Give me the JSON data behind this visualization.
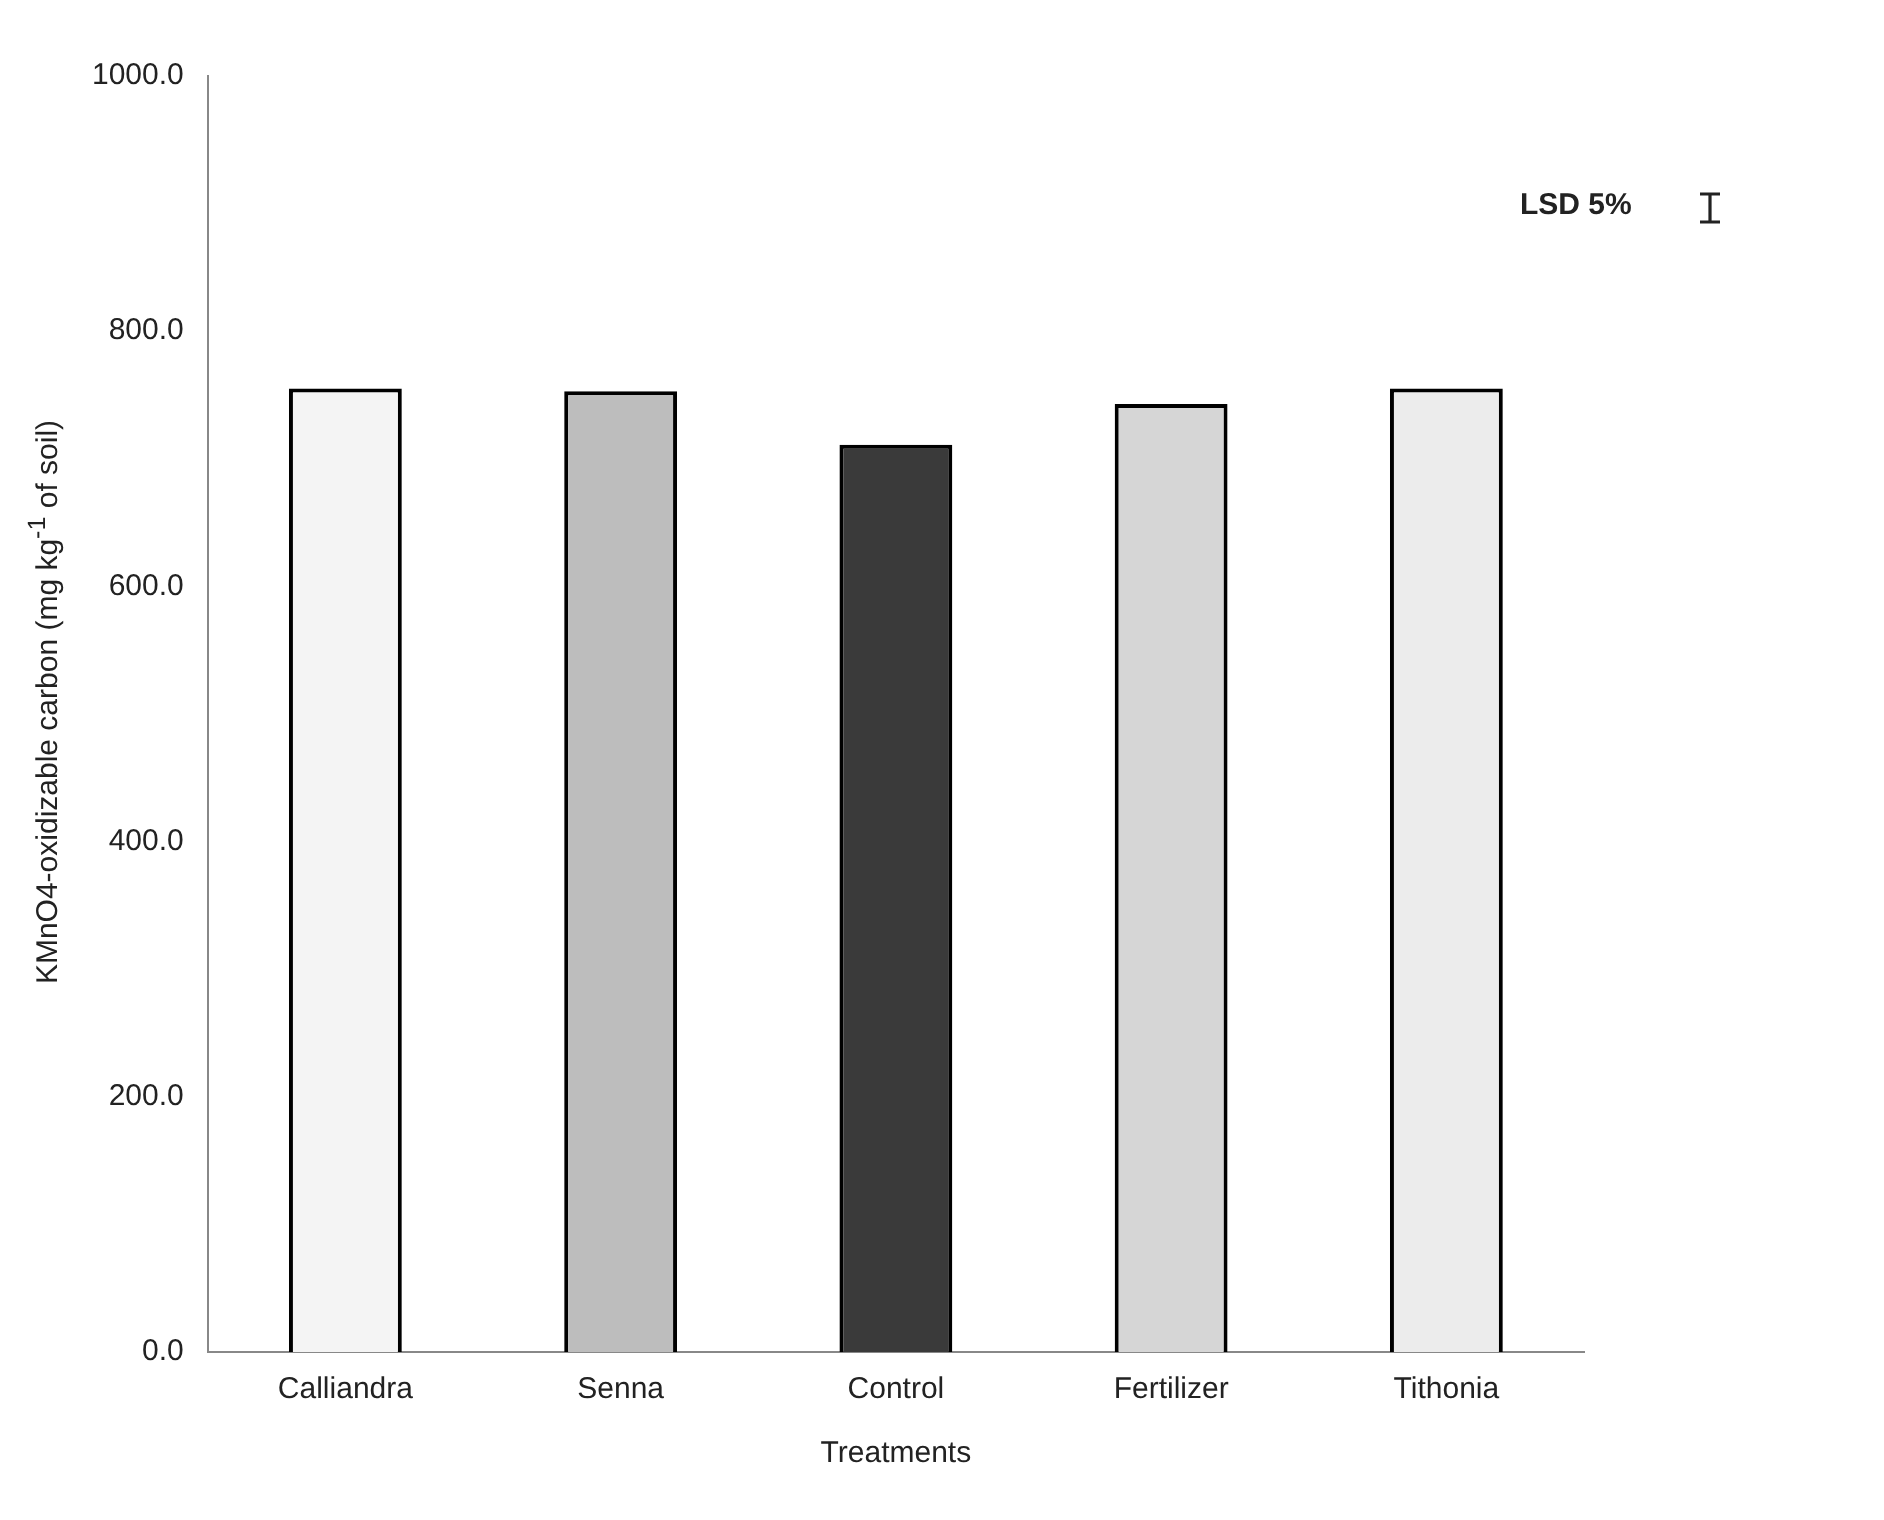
{
  "chart_data": {
    "type": "bar",
    "xlabel": "Treatments",
    "ylabel": "KMnO4-oxidizable carbon (mg kg$^{-1}$ of soil)",
    "categories": [
      "Calliandra",
      "Senna",
      "Control",
      "Fertilizer",
      "Tithonia"
    ],
    "values": [
      755,
      753,
      711,
      743,
      755
    ],
    "colors": [
      "#f4f4f4",
      "#bdbdbd",
      "#3a3a3a",
      "#d6d6d6",
      "#ececec"
    ],
    "ylim": [
      0,
      1000
    ],
    "yticks": [
      {
        "value": 0,
        "label": "0.0"
      },
      {
        "value": 200,
        "label": "200.0"
      },
      {
        "value": 400,
        "label": "400.0"
      },
      {
        "value": 600,
        "label": "600.0"
      },
      {
        "value": 800,
        "label": "800.0"
      },
      {
        "value": 1000,
        "label": "1000.0"
      }
    ],
    "annotations": [
      "LSD 5%"
    ],
    "grid": false,
    "legend": false
  }
}
